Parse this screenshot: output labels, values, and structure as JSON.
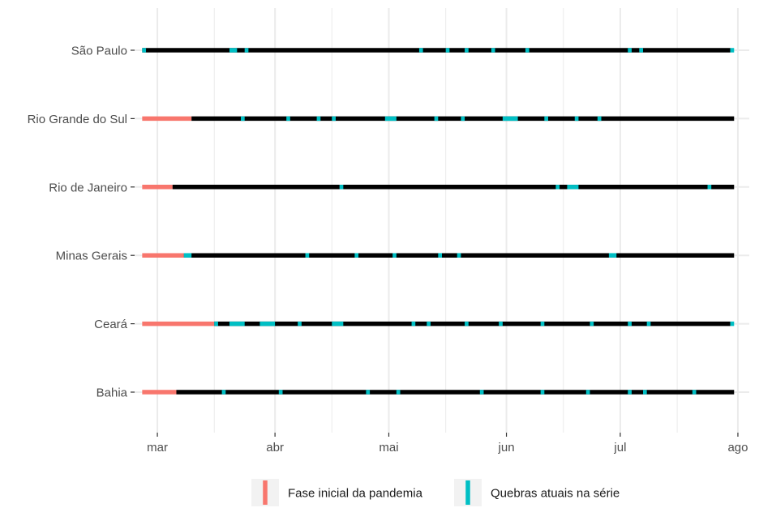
{
  "chart_data": {
    "type": "timeline",
    "title": "",
    "xlabel": "",
    "ylabel": "",
    "grid": true,
    "legend_position": "bottom",
    "x_axis": {
      "type": "date",
      "range": [
        "2020-02-24",
        "2020-08-04"
      ],
      "ticks": [
        {
          "date": "2020-03-01",
          "label": "mar"
        },
        {
          "date": "2020-04-01",
          "label": "abr"
        },
        {
          "date": "2020-05-01",
          "label": "mai"
        },
        {
          "date": "2020-06-01",
          "label": "jun"
        },
        {
          "date": "2020-07-01",
          "label": "jul"
        },
        {
          "date": "2020-08-01",
          "label": "ago"
        }
      ],
      "minor_ticks": [
        "2020-03-16",
        "2020-04-16",
        "2020-05-16",
        "2020-06-16",
        "2020-07-16"
      ]
    },
    "colors": {
      "initial": "#F8766D",
      "breaks": "#00BFC4",
      "series_line": "#000000",
      "grid": "#EBEBEB"
    },
    "legend": [
      {
        "key": "initial",
        "label": "Fase inicial da pandemia"
      },
      {
        "key": "breaks",
        "label": "Quebras atuais na série"
      }
    ],
    "rows": [
      {
        "label": "São Paulo",
        "initial_phase": null,
        "series_range": [
          "2020-02-26",
          "2020-07-30"
        ],
        "breaks": [
          [
            "2020-02-26",
            "2020-02-27"
          ],
          [
            "2020-03-20",
            "2020-03-22"
          ],
          [
            "2020-03-24",
            "2020-03-25"
          ],
          [
            "2020-05-09",
            "2020-05-10"
          ],
          [
            "2020-05-16",
            "2020-05-17"
          ],
          [
            "2020-05-21",
            "2020-05-22"
          ],
          [
            "2020-05-28",
            "2020-05-29"
          ],
          [
            "2020-06-06",
            "2020-06-07"
          ],
          [
            "2020-07-03",
            "2020-07-04"
          ],
          [
            "2020-07-06",
            "2020-07-07"
          ],
          [
            "2020-07-30",
            "2020-07-31"
          ]
        ]
      },
      {
        "label": "Rio Grande do Sul",
        "initial_phase": [
          "2020-02-26",
          "2020-03-10"
        ],
        "series_range": [
          "2020-03-10",
          "2020-07-31"
        ],
        "breaks": [
          [
            "2020-03-23",
            "2020-03-24"
          ],
          [
            "2020-04-04",
            "2020-04-05"
          ],
          [
            "2020-04-12",
            "2020-04-13"
          ],
          [
            "2020-04-16",
            "2020-04-17"
          ],
          [
            "2020-04-30",
            "2020-05-03"
          ],
          [
            "2020-05-13",
            "2020-05-14"
          ],
          [
            "2020-05-20",
            "2020-05-21"
          ],
          [
            "2020-05-31",
            "2020-06-04"
          ],
          [
            "2020-06-11",
            "2020-06-12"
          ],
          [
            "2020-06-19",
            "2020-06-20"
          ],
          [
            "2020-06-25",
            "2020-06-26"
          ]
        ]
      },
      {
        "label": "Rio de Janeiro",
        "initial_phase": [
          "2020-02-26",
          "2020-03-05"
        ],
        "series_range": [
          "2020-03-05",
          "2020-07-31"
        ],
        "breaks": [
          [
            "2020-04-18",
            "2020-04-19"
          ],
          [
            "2020-06-14",
            "2020-06-15"
          ],
          [
            "2020-06-17",
            "2020-06-20"
          ],
          [
            "2020-07-24",
            "2020-07-25"
          ]
        ]
      },
      {
        "label": "Minas Gerais",
        "initial_phase": [
          "2020-02-26",
          "2020-03-08"
        ],
        "series_range": [
          "2020-03-08",
          "2020-07-31"
        ],
        "breaks": [
          [
            "2020-03-08",
            "2020-03-10"
          ],
          [
            "2020-04-09",
            "2020-04-10"
          ],
          [
            "2020-04-22",
            "2020-04-23"
          ],
          [
            "2020-05-02",
            "2020-05-03"
          ],
          [
            "2020-05-14",
            "2020-05-15"
          ],
          [
            "2020-05-19",
            "2020-05-20"
          ],
          [
            "2020-06-28",
            "2020-06-30"
          ]
        ]
      },
      {
        "label": "Ceará",
        "initial_phase": [
          "2020-02-26",
          "2020-03-16"
        ],
        "series_range": [
          "2020-03-16",
          "2020-07-30"
        ],
        "breaks": [
          [
            "2020-03-16",
            "2020-03-17"
          ],
          [
            "2020-03-20",
            "2020-03-24"
          ],
          [
            "2020-03-28",
            "2020-04-01"
          ],
          [
            "2020-04-07",
            "2020-04-08"
          ],
          [
            "2020-04-16",
            "2020-04-19"
          ],
          [
            "2020-05-07",
            "2020-05-08"
          ],
          [
            "2020-05-11",
            "2020-05-12"
          ],
          [
            "2020-05-21",
            "2020-05-22"
          ],
          [
            "2020-05-30",
            "2020-05-31"
          ],
          [
            "2020-06-10",
            "2020-06-11"
          ],
          [
            "2020-06-23",
            "2020-06-24"
          ],
          [
            "2020-07-03",
            "2020-07-04"
          ],
          [
            "2020-07-08",
            "2020-07-09"
          ],
          [
            "2020-07-30",
            "2020-07-31"
          ]
        ]
      },
      {
        "label": "Bahia",
        "initial_phase": [
          "2020-02-26",
          "2020-03-06"
        ],
        "series_range": [
          "2020-03-06",
          "2020-07-31"
        ],
        "breaks": [
          [
            "2020-03-18",
            "2020-03-19"
          ],
          [
            "2020-04-02",
            "2020-04-03"
          ],
          [
            "2020-04-25",
            "2020-04-26"
          ],
          [
            "2020-05-03",
            "2020-05-04"
          ],
          [
            "2020-05-25",
            "2020-05-26"
          ],
          [
            "2020-06-10",
            "2020-06-11"
          ],
          [
            "2020-06-22",
            "2020-06-23"
          ],
          [
            "2020-07-03",
            "2020-07-04"
          ],
          [
            "2020-07-07",
            "2020-07-08"
          ],
          [
            "2020-07-20",
            "2020-07-21"
          ]
        ]
      }
    ]
  }
}
